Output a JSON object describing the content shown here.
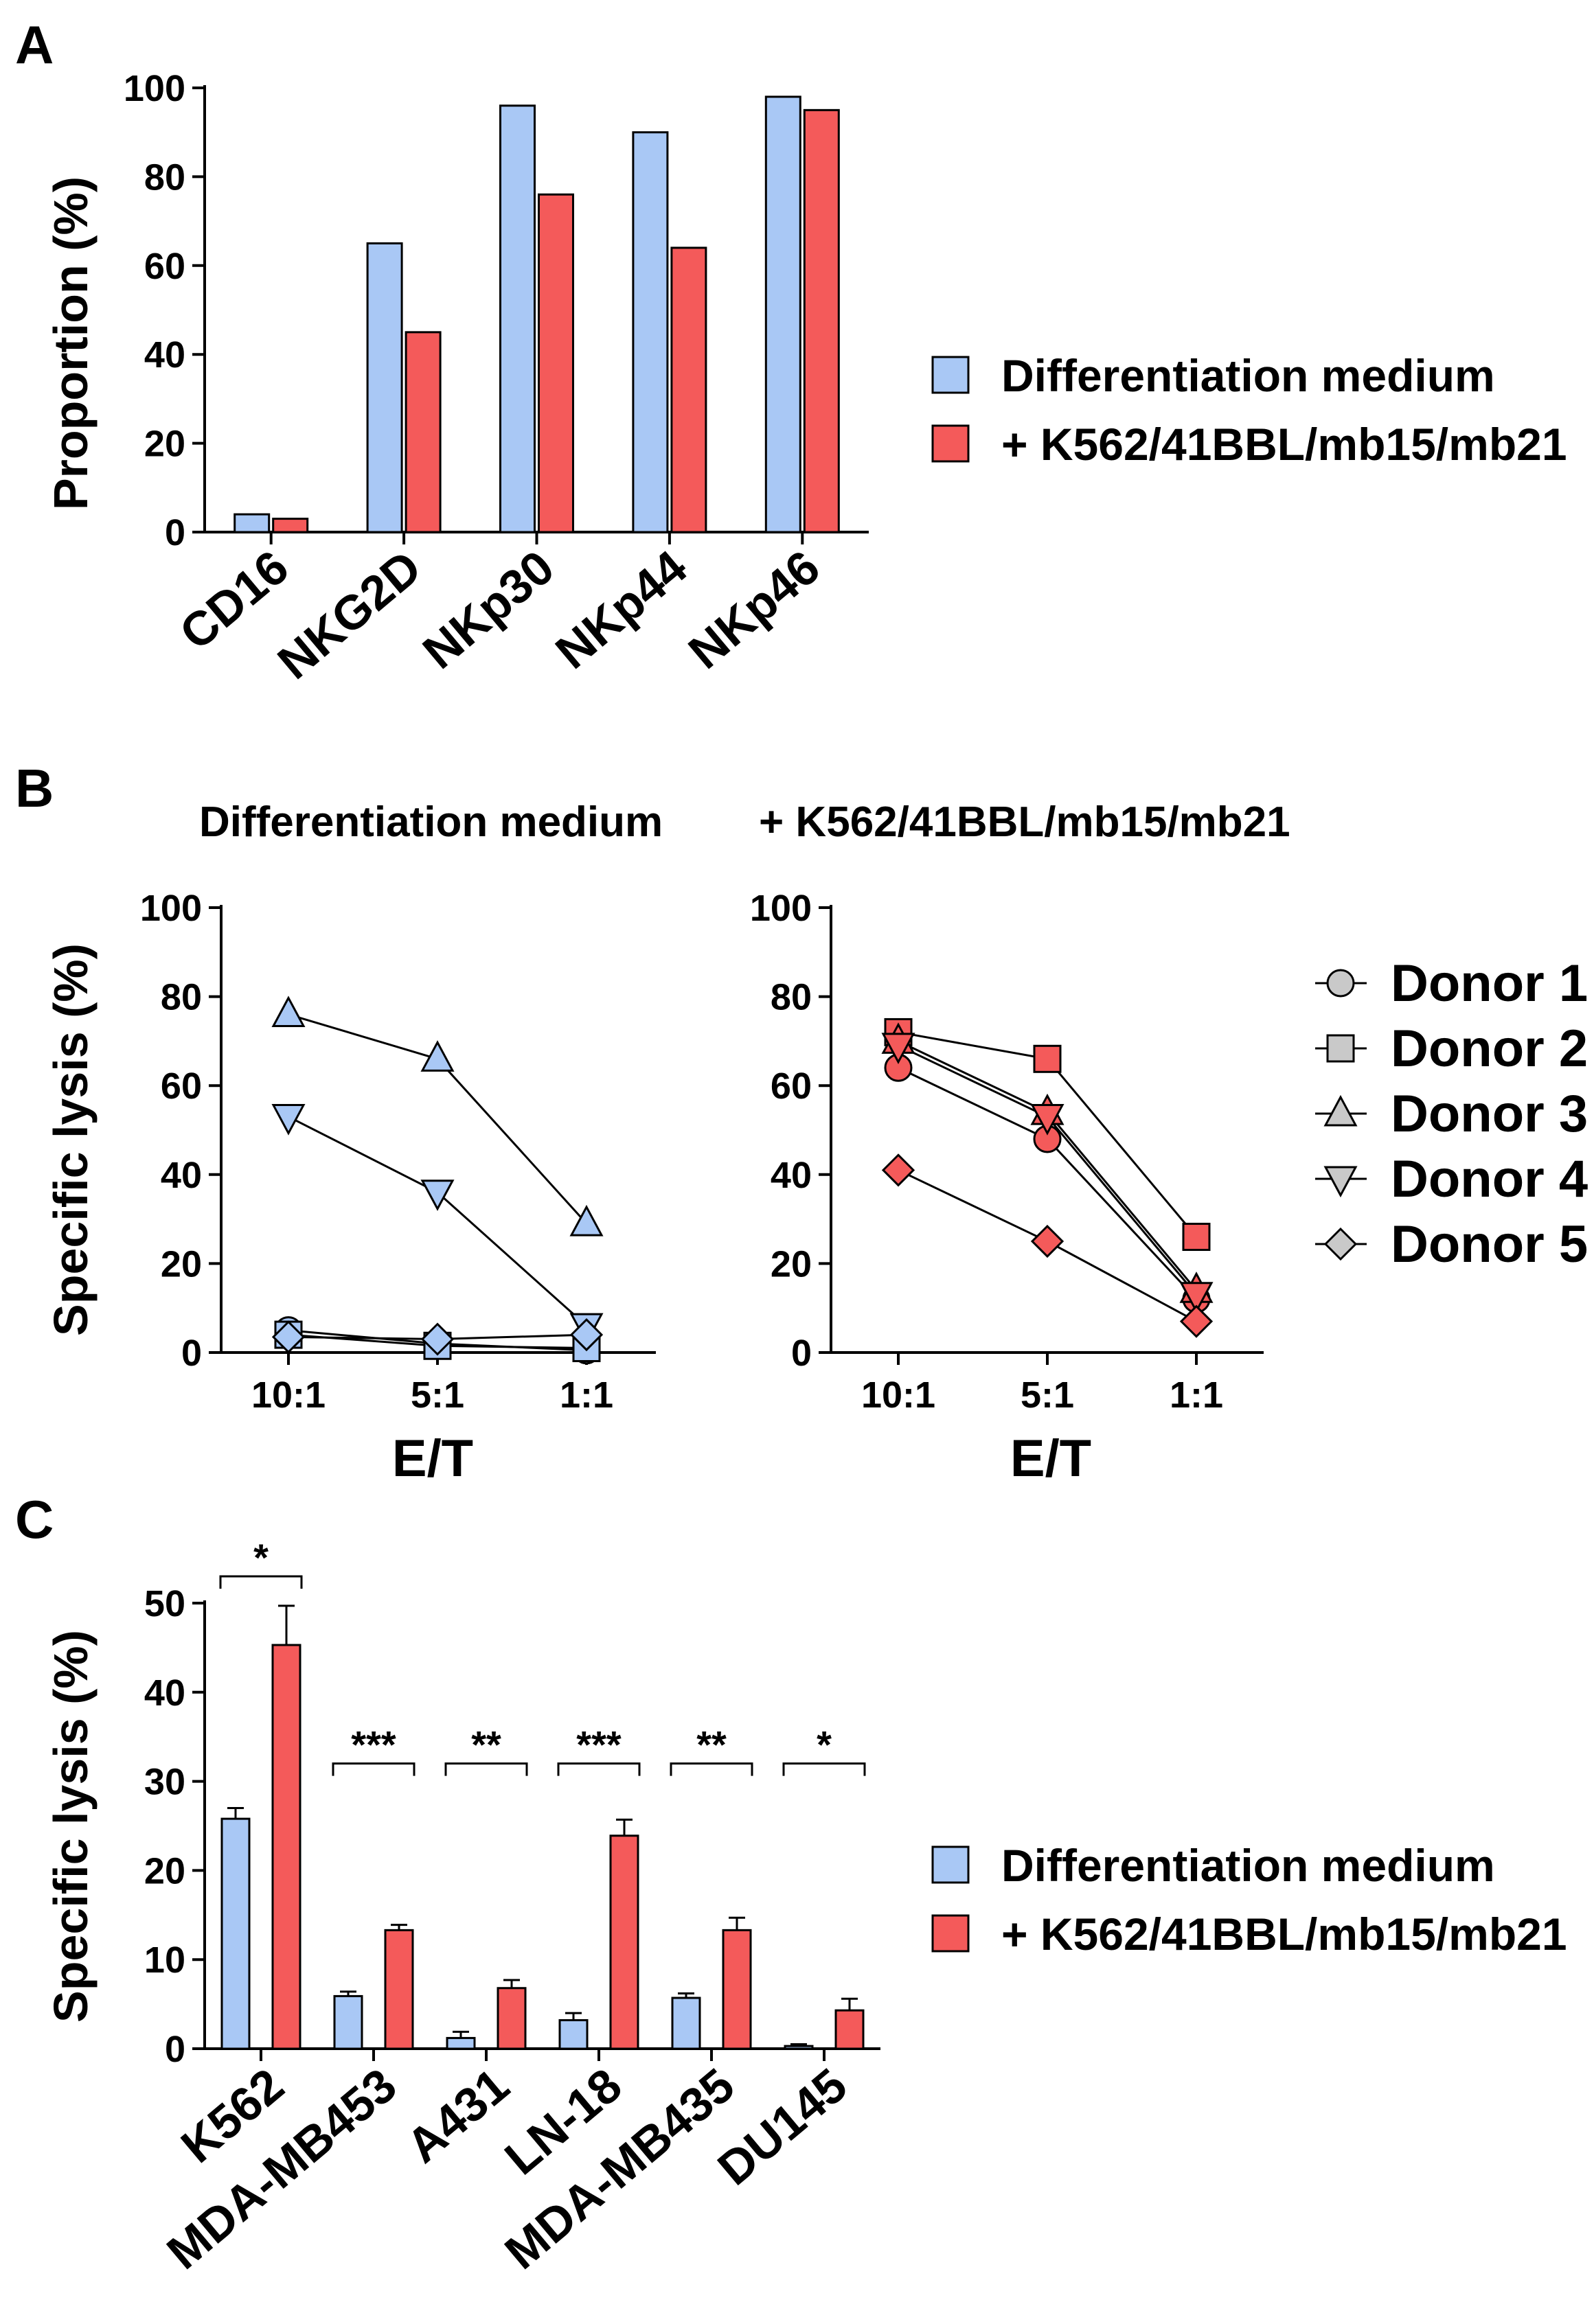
{
  "colors": {
    "blue": "#a9c8f5",
    "red": "#f45a5a",
    "grey": "#c9c9c9",
    "axis": "#000000"
  },
  "legend": {
    "differentiation": "Differentiation medium",
    "k562": "+ K562/41BBL/mb15/mb21"
  },
  "chart_data": [
    {
      "panel": "A",
      "type": "bar",
      "ylabel": "Proportion  (%)",
      "ylim": [
        0,
        100
      ],
      "yticks": [
        "0",
        "20",
        "40",
        "60",
        "80",
        "100"
      ],
      "categories": [
        "CD16",
        "NKG2D",
        "NKp30",
        "NKp44",
        "NKp46"
      ],
      "series": [
        {
          "name": "Differentiation medium",
          "values": [
            4,
            65,
            96,
            90,
            98
          ]
        },
        {
          "name": "+ K562/41BBL/mb15/mb21",
          "values": [
            3,
            45,
            76,
            64,
            95
          ]
        }
      ],
      "legend_position": "right"
    },
    {
      "panel": "B-left",
      "type": "line",
      "title": "Differentiation medium",
      "xlabel": "E/T",
      "ylabel": "Specific lysis  (%)",
      "ylim": [
        0,
        100
      ],
      "yticks": [
        "0",
        "20",
        "40",
        "60",
        "80",
        "100"
      ],
      "categories": [
        "10:1",
        "5:1",
        "1:1"
      ],
      "series": [
        {
          "name": "Donor 1",
          "marker": "circle",
          "values": [
            5,
            2,
            0.5
          ]
        },
        {
          "name": "Donor 2",
          "marker": "square",
          "values": [
            4,
            1.5,
            1
          ]
        },
        {
          "name": "Donor 3",
          "marker": "triangle-up",
          "values": [
            76,
            66,
            29
          ]
        },
        {
          "name": "Donor 4",
          "marker": "triangle-down",
          "values": [
            53,
            36,
            6
          ]
        },
        {
          "name": "Donor 5",
          "marker": "diamond",
          "values": [
            3.5,
            3,
            4
          ]
        }
      ]
    },
    {
      "panel": "B-right",
      "type": "line",
      "title": "+ K562/41BBL/mb15/mb21",
      "xlabel": "E/T",
      "ylim": [
        0,
        100
      ],
      "yticks": [
        "0",
        "20",
        "40",
        "60",
        "80",
        "100"
      ],
      "categories": [
        "10:1",
        "5:1",
        "1:1"
      ],
      "series": [
        {
          "name": "Donor 1",
          "marker": "circle",
          "values": [
            64,
            48,
            12
          ]
        },
        {
          "name": "Donor 2",
          "marker": "square",
          "values": [
            72,
            66,
            26
          ]
        },
        {
          "name": "Donor 3",
          "marker": "triangle-up",
          "values": [
            70,
            54,
            14
          ]
        },
        {
          "name": "Donor 4",
          "marker": "triangle-down",
          "values": [
            69,
            53,
            13
          ]
        },
        {
          "name": "Donor 5",
          "marker": "diamond",
          "values": [
            41,
            25,
            7
          ]
        }
      ],
      "legend": [
        "Donor 1",
        "Donor 2",
        "Donor 3",
        "Donor 4",
        "Donor 5"
      ],
      "legend_position": "right"
    },
    {
      "panel": "C",
      "type": "bar",
      "ylabel": "Specific lysis  (%)",
      "ylim": [
        0,
        50
      ],
      "yticks": [
        "0",
        "10",
        "20",
        "30",
        "40",
        "50"
      ],
      "categories": [
        "K562",
        "MDA-MB453",
        "A431",
        "LN-18",
        "MDA-MB435",
        "DU145"
      ],
      "series": [
        {
          "name": "Differentiation medium",
          "values": [
            25.8,
            5.9,
            1.2,
            3.2,
            5.7,
            0.3
          ],
          "errors": [
            1.2,
            0.5,
            0.7,
            0.8,
            0.5,
            0.2
          ]
        },
        {
          "name": "+ K562/41BBL/mb15/mb21",
          "values": [
            45.3,
            13.3,
            6.8,
            23.9,
            13.3,
            4.3
          ],
          "errors": [
            4.4,
            0.6,
            0.9,
            1.8,
            1.4,
            1.3
          ]
        }
      ],
      "significance": [
        "*",
        "***",
        "**",
        "***",
        "**",
        "*"
      ],
      "legend_position": "right"
    }
  ],
  "panel_labels": [
    "A",
    "B",
    "C"
  ]
}
